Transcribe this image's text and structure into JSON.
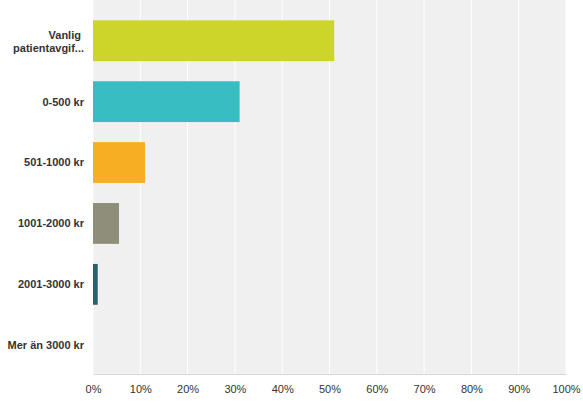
{
  "chart_data": {
    "type": "bar",
    "orientation": "horizontal",
    "categories": [
      "Vanlig patientavgif...",
      "0-500 kr",
      "501-1000 kr",
      "1001-2000 kr",
      "2001-3000 kr",
      "Mer än 3000 kr"
    ],
    "values": [
      51,
      31,
      11,
      5.5,
      1,
      0
    ],
    "colors": [
      "#cdd52a",
      "#36bec2",
      "#f8ae22",
      "#8f8e7a",
      "#2e5f6f",
      "#6b5b95"
    ],
    "xlim": [
      0,
      100
    ],
    "xticks": [
      {
        "value": 0,
        "label": "0%"
      },
      {
        "value": 10,
        "label": "10%"
      },
      {
        "value": 20,
        "label": "20%"
      },
      {
        "value": 30,
        "label": "30%"
      },
      {
        "value": 40,
        "label": "40%"
      },
      {
        "value": 50,
        "label": "50%"
      },
      {
        "value": 60,
        "label": "60%"
      },
      {
        "value": 70,
        "label": "70%"
      },
      {
        "value": 80,
        "label": "80%"
      },
      {
        "value": 90,
        "label": "90%"
      },
      {
        "value": 100,
        "label": "100%"
      }
    ],
    "grid": true
  }
}
